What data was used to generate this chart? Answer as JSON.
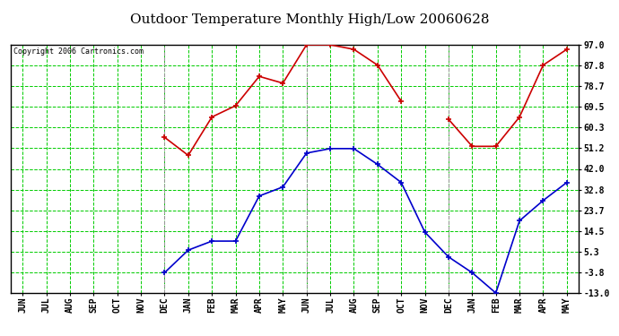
{
  "title": "Outdoor Temperature Monthly High/Low 20060628",
  "copyright": "Copyright 2006 Cartronics.com",
  "x_labels": [
    "JUN",
    "JUL",
    "AUG",
    "SEP",
    "OCT",
    "NOV",
    "DEC",
    "JAN",
    "FEB",
    "MAR",
    "APR",
    "MAY",
    "JUN",
    "JUL",
    "AUG",
    "SEP",
    "OCT",
    "NOV",
    "DEC",
    "JAN",
    "FEB",
    "MAR",
    "APR",
    "MAY"
  ],
  "high_values": [
    null,
    null,
    null,
    null,
    null,
    null,
    56.0,
    48.0,
    65.0,
    70.0,
    83.0,
    80.0,
    97.0,
    97.0,
    95.0,
    88.0,
    72.0,
    null,
    64.0,
    52.0,
    52.0,
    65.0,
    88.0,
    95.0
  ],
  "low_values": [
    null,
    null,
    null,
    null,
    null,
    null,
    -4.0,
    6.0,
    10.0,
    10.0,
    30.0,
    34.0,
    49.0,
    51.0,
    51.0,
    44.0,
    36.0,
    14.0,
    3.0,
    -4.0,
    -13.0,
    19.0,
    28.0,
    36.0
  ],
  "high_color": "#cc0000",
  "low_color": "#0000cc",
  "bg_color": "#ffffff",
  "plot_bg_color": "#ffffff",
  "grid_color_major": "#999999",
  "grid_color_minor": "#00cc00",
  "y_ticks": [
    -13.0,
    -3.8,
    5.3,
    14.5,
    23.7,
    32.8,
    42.0,
    51.2,
    60.3,
    69.5,
    78.7,
    87.8,
    97.0
  ],
  "ylim": [
    -13.0,
    97.0
  ],
  "title_fontsize": 11,
  "copyright_fontsize": 6,
  "tick_fontsize": 7
}
